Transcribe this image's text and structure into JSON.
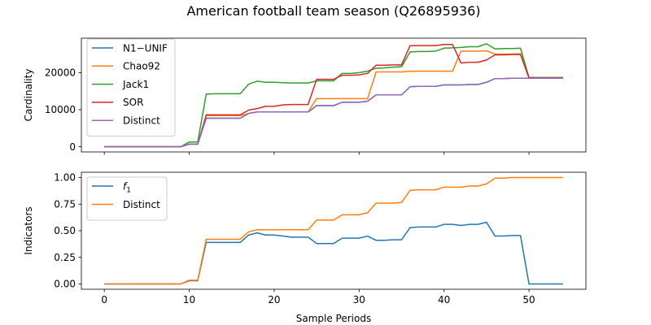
{
  "title": "American football team season (Q26895936)",
  "colors": {
    "blue": "#1f77b4",
    "orange": "#ff7f0e",
    "green": "#2ca02c",
    "red": "#d62728",
    "purple": "#9467bd"
  },
  "chart_data": [
    {
      "type": "line",
      "ylabel": "Cardinality",
      "xlabel": "",
      "xlim": [
        -2.7,
        56.7
      ],
      "ylim": [
        -1400,
        29300
      ],
      "xticks": [
        0,
        10,
        20,
        30,
        40,
        50
      ],
      "yticks": [
        0,
        10000,
        20000
      ],
      "ytick_labels": [
        "0",
        "10000",
        "20000"
      ],
      "xtick_labels_visible": false,
      "legend": "upper left",
      "x": [
        0,
        1,
        2,
        3,
        4,
        5,
        6,
        7,
        8,
        9,
        10,
        11,
        12,
        13,
        14,
        15,
        16,
        17,
        18,
        19,
        20,
        21,
        22,
        23,
        24,
        25,
        26,
        27,
        28,
        29,
        30,
        31,
        32,
        33,
        34,
        35,
        36,
        37,
        38,
        39,
        40,
        41,
        42,
        43,
        44,
        45,
        46,
        47,
        48,
        49,
        50,
        51,
        52,
        53,
        54
      ],
      "series": [
        {
          "name": "N1−UNIF",
          "color": "#1f77b4",
          "values": [
            0,
            0,
            0,
            0,
            0,
            0,
            0,
            0,
            0,
            0,
            700,
            700,
            7700,
            7700,
            7700,
            7700,
            7700,
            9000,
            9400,
            9400,
            9400,
            9400,
            9400,
            9400,
            9400,
            11100,
            11100,
            11100,
            12000,
            12000,
            12000,
            12300,
            14000,
            14000,
            14000,
            14000,
            16200,
            16300,
            16300,
            16300,
            16700,
            16700,
            16700,
            16800,
            16800,
            17400,
            18400,
            18400,
            18500,
            18500,
            18500,
            18500,
            18500,
            18500,
            18500
          ]
        },
        {
          "name": "Chao92",
          "color": "#ff7f0e",
          "values": [
            0,
            0,
            0,
            0,
            0,
            0,
            0,
            0,
            0,
            0,
            700,
            700,
            8400,
            8400,
            8400,
            8400,
            8400,
            9000,
            9400,
            9400,
            9400,
            9400,
            9400,
            9400,
            9400,
            13000,
            13000,
            13000,
            13000,
            13000,
            13000,
            13000,
            20200,
            20200,
            20200,
            20200,
            20400,
            20400,
            20400,
            20400,
            20400,
            20400,
            25800,
            25800,
            25800,
            25900,
            25000,
            25000,
            25000,
            25100,
            18500,
            18500,
            18500,
            18500,
            18500
          ]
        },
        {
          "name": "Jack1",
          "color": "#2ca02c",
          "values": [
            0,
            0,
            0,
            0,
            0,
            0,
            0,
            0,
            0,
            0,
            1300,
            1300,
            14200,
            14300,
            14300,
            14300,
            14300,
            16900,
            17700,
            17400,
            17400,
            17300,
            17200,
            17200,
            17200,
            17800,
            17800,
            17800,
            19800,
            19800,
            20000,
            20400,
            21200,
            21300,
            21500,
            21600,
            25600,
            25700,
            25700,
            25800,
            26600,
            26700,
            26800,
            27000,
            27000,
            27800,
            26400,
            26500,
            26500,
            26600,
            18700,
            18700,
            18700,
            18700,
            18700
          ]
        },
        {
          "name": "SOR",
          "color": "#d62728",
          "values": [
            0,
            0,
            0,
            0,
            0,
            0,
            0,
            0,
            0,
            0,
            700,
            700,
            8600,
            8600,
            8600,
            8600,
            8600,
            9900,
            10300,
            10900,
            10900,
            11300,
            11400,
            11400,
            11400,
            18200,
            18200,
            18200,
            19300,
            19300,
            19400,
            19800,
            22000,
            22000,
            22100,
            22100,
            27300,
            27300,
            27300,
            27300,
            27600,
            27600,
            22600,
            22800,
            22800,
            23400,
            24800,
            24800,
            24900,
            24900,
            18600,
            18600,
            18600,
            18600,
            18600
          ]
        },
        {
          "name": "Distinct",
          "color": "#9467bd",
          "values": [
            0,
            0,
            0,
            0,
            0,
            0,
            0,
            0,
            0,
            0,
            700,
            700,
            7700,
            7700,
            7700,
            7700,
            7700,
            9000,
            9400,
            9400,
            9400,
            9400,
            9400,
            9400,
            9400,
            11100,
            11100,
            11100,
            12000,
            12000,
            12000,
            12300,
            14000,
            14000,
            14000,
            14000,
            16200,
            16300,
            16300,
            16300,
            16700,
            16700,
            16700,
            16800,
            16800,
            17400,
            18400,
            18400,
            18500,
            18500,
            18500,
            18500,
            18500,
            18500,
            18500
          ]
        }
      ]
    },
    {
      "type": "line",
      "ylabel": "Indicators",
      "xlabel": "Sample Periods",
      "xlim": [
        -2.7,
        56.7
      ],
      "ylim": [
        -0.05,
        1.05
      ],
      "xticks": [
        0,
        10,
        20,
        30,
        40,
        50
      ],
      "xtick_labels": [
        "0",
        "10",
        "20",
        "30",
        "40",
        "50"
      ],
      "yticks": [
        0,
        0.25,
        0.5,
        0.75,
        1.0
      ],
      "ytick_labels": [
        "0.00",
        "0.25",
        "0.50",
        "0.75",
        "1.00"
      ],
      "legend": "upper left",
      "x": [
        0,
        1,
        2,
        3,
        4,
        5,
        6,
        7,
        8,
        9,
        10,
        11,
        12,
        13,
        14,
        15,
        16,
        17,
        18,
        19,
        20,
        21,
        22,
        23,
        24,
        25,
        26,
        27,
        28,
        29,
        30,
        31,
        32,
        33,
        34,
        35,
        36,
        37,
        38,
        39,
        40,
        41,
        42,
        43,
        44,
        45,
        46,
        47,
        48,
        49,
        50,
        51,
        52,
        53,
        54
      ],
      "series": [
        {
          "name": "f1",
          "name_main": "f",
          "name_sub": "1",
          "color": "#1f77b4",
          "values": [
            0,
            0,
            0,
            0,
            0,
            0,
            0,
            0,
            0,
            0,
            0.03,
            0.03,
            0.39,
            0.39,
            0.39,
            0.39,
            0.39,
            0.46,
            0.48,
            0.46,
            0.46,
            0.45,
            0.44,
            0.44,
            0.44,
            0.38,
            0.38,
            0.38,
            0.43,
            0.43,
            0.43,
            0.45,
            0.41,
            0.41,
            0.415,
            0.415,
            0.53,
            0.535,
            0.535,
            0.535,
            0.56,
            0.56,
            0.55,
            0.56,
            0.56,
            0.58,
            0.45,
            0.45,
            0.455,
            0.455,
            0,
            0,
            0,
            0,
            0
          ]
        },
        {
          "name": "Distinct",
          "color": "#ff7f0e",
          "values": [
            0,
            0,
            0,
            0,
            0,
            0,
            0,
            0,
            0,
            0,
            0.035,
            0.035,
            0.42,
            0.42,
            0.42,
            0.42,
            0.42,
            0.49,
            0.51,
            0.51,
            0.51,
            0.51,
            0.51,
            0.51,
            0.51,
            0.6,
            0.6,
            0.6,
            0.65,
            0.65,
            0.65,
            0.67,
            0.76,
            0.76,
            0.76,
            0.765,
            0.88,
            0.885,
            0.885,
            0.885,
            0.91,
            0.91,
            0.91,
            0.92,
            0.92,
            0.94,
            0.995,
            0.995,
            1.0,
            1.0,
            1.0,
            1.0,
            1.0,
            1.0,
            1.0
          ]
        }
      ]
    }
  ]
}
